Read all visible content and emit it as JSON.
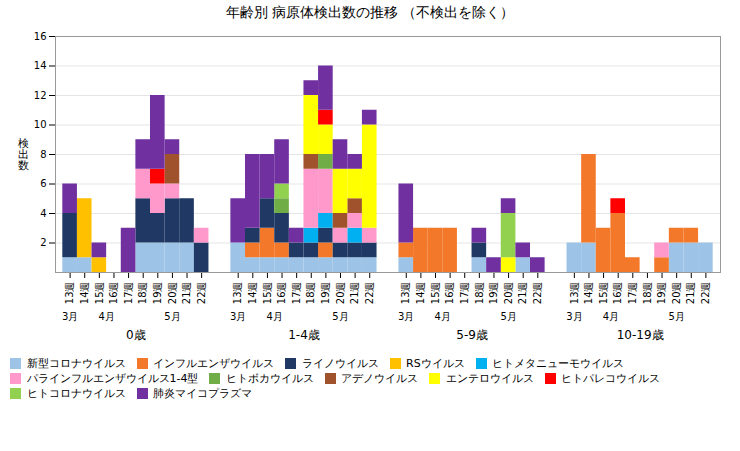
{
  "chart_data": {
    "type": "bar",
    "stacked": true,
    "title": "年齢別 病原体検出数の推移  （不検出を除く）",
    "ylabel": "検\n出\n数",
    "categories": [
      "13週",
      "14週",
      "15週",
      "16週",
      "17週",
      "18週",
      "19週",
      "20週",
      "21週",
      "22週",
      "13週",
      "14週",
      "15週",
      "16週",
      "17週",
      "18週",
      "19週",
      "20週",
      "21週",
      "22週",
      "13週",
      "14週",
      "15週",
      "16週",
      "17週",
      "18週",
      "19週",
      "20週",
      "21週",
      "22週",
      "13週",
      "14週",
      "15週",
      "16週",
      "17週",
      "18週",
      "19週",
      "20週",
      "21週",
      "22週"
    ],
    "category_months": [
      "3月",
      "4月",
      "4月",
      "4月",
      "4月",
      "5月",
      "5月",
      "5月",
      "5月",
      "5月",
      "3月",
      "4月",
      "4月",
      "4月",
      "4月",
      "5月",
      "5月",
      "5月",
      "5月",
      "5月",
      "3月",
      "4月",
      "4月",
      "4月",
      "4月",
      "5月",
      "5月",
      "5月",
      "5月",
      "5月",
      "3月",
      "4月",
      "4月",
      "4月",
      "4月",
      "5月",
      "5月",
      "5月",
      "5月",
      "5月"
    ],
    "category_groups": [
      "0歳",
      "0歳",
      "0歳",
      "0歳",
      "0歳",
      "0歳",
      "0歳",
      "0歳",
      "0歳",
      "0歳",
      "1-4歳",
      "1-4歳",
      "1-4歳",
      "1-4歳",
      "1-4歳",
      "1-4歳",
      "1-4歳",
      "1-4歳",
      "1-4歳",
      "1-4歳",
      "5-9歳",
      "5-9歳",
      "5-9歳",
      "5-9歳",
      "5-9歳",
      "5-9歳",
      "5-9歳",
      "5-9歳",
      "5-9歳",
      "5-9歳",
      "10-19歳",
      "10-19歳",
      "10-19歳",
      "10-19歳",
      "10-19歳",
      "10-19歳",
      "10-19歳",
      "10-19歳",
      "10-19歳",
      "10-19歳"
    ],
    "series": [
      {
        "name": "新型コロナウイルス",
        "color": "#9DC3E6",
        "values": [
          1,
          1,
          0,
          0,
          0,
          2,
          2,
          2,
          2,
          0,
          2,
          1,
          1,
          1,
          1,
          1,
          1,
          1,
          1,
          1,
          1,
          0,
          0,
          0,
          0,
          1,
          0,
          0,
          1,
          0,
          2,
          2,
          0,
          0,
          0,
          0,
          0,
          2,
          2,
          2
        ]
      },
      {
        "name": "インフルエンザウイルス",
        "color": "#F4782A",
        "values": [
          0,
          0,
          0,
          0,
          0,
          0,
          0,
          0,
          0,
          0,
          0,
          1,
          2,
          1,
          0,
          0,
          1,
          0,
          0,
          0,
          1,
          3,
          3,
          3,
          0,
          0,
          0,
          0,
          0,
          0,
          0,
          6,
          3,
          4,
          1,
          0,
          1,
          1,
          1,
          0
        ]
      },
      {
        "name": "ライノウイルス",
        "color": "#1F3864",
        "values": [
          3,
          0,
          0,
          0,
          0,
          3,
          2,
          3,
          3,
          2,
          0,
          1,
          2,
          2,
          1,
          1,
          1,
          1,
          1,
          1,
          0,
          0,
          0,
          0,
          0,
          1,
          0,
          0,
          0,
          0,
          0,
          0,
          0,
          0,
          0,
          0,
          0,
          0,
          0,
          0
        ]
      },
      {
        "name": "RSウイルス",
        "color": "#FFC000",
        "values": [
          0,
          4,
          1,
          0,
          0,
          0,
          0,
          0,
          0,
          0,
          0,
          0,
          0,
          0,
          0,
          0,
          0,
          0,
          0,
          0,
          0,
          0,
          0,
          0,
          0,
          0,
          0,
          0,
          0,
          0,
          0,
          0,
          0,
          0,
          0,
          0,
          0,
          0,
          0,
          0
        ]
      },
      {
        "name": "ヒトメタニューモウイルス",
        "color": "#00B0F0",
        "values": [
          0,
          0,
          0,
          0,
          0,
          0,
          0,
          0,
          0,
          0,
          0,
          0,
          0,
          0,
          0,
          1,
          1,
          0,
          1,
          0,
          0,
          0,
          0,
          0,
          0,
          0,
          0,
          0,
          0,
          0,
          0,
          0,
          0,
          0,
          0,
          0,
          0,
          0,
          0,
          0
        ]
      },
      {
        "name": "パラインフルエンザウイルス1-4型",
        "color": "#FF99CC",
        "values": [
          0,
          0,
          0,
          0,
          0,
          2,
          2,
          1,
          0,
          1,
          0,
          0,
          0,
          0,
          0,
          4,
          3,
          1,
          1,
          1,
          0,
          0,
          0,
          0,
          0,
          0,
          0,
          0,
          0,
          0,
          0,
          0,
          0,
          0,
          0,
          0,
          1,
          0,
          0,
          0
        ]
      },
      {
        "name": "ヒトボカウイルス",
        "color": "#70AD47",
        "values": [
          0,
          0,
          0,
          0,
          0,
          0,
          0,
          0,
          0,
          0,
          0,
          0,
          0,
          1,
          0,
          0,
          1,
          0,
          0,
          0,
          0,
          0,
          0,
          0,
          0,
          0,
          0,
          0,
          0,
          0,
          0,
          0,
          0,
          0,
          0,
          0,
          0,
          0,
          0,
          0
        ]
      },
      {
        "name": "アデノウイルス",
        "color": "#A0522D",
        "values": [
          0,
          0,
          0,
          0,
          0,
          0,
          0,
          2,
          0,
          0,
          0,
          0,
          0,
          0,
          0,
          1,
          0,
          1,
          1,
          0,
          0,
          0,
          0,
          0,
          0,
          0,
          0,
          0,
          0,
          0,
          0,
          0,
          0,
          0,
          0,
          0,
          0,
          0,
          0,
          0
        ]
      },
      {
        "name": "エンテロウイルス",
        "color": "#FFFF00",
        "values": [
          0,
          0,
          0,
          0,
          0,
          0,
          0,
          0,
          0,
          0,
          0,
          0,
          0,
          0,
          0,
          4,
          2,
          3,
          2,
          7,
          0,
          0,
          0,
          0,
          0,
          0,
          0,
          1,
          0,
          0,
          0,
          0,
          0,
          0,
          0,
          0,
          0,
          0,
          0,
          0
        ]
      },
      {
        "name": "ヒトパレコウイルス",
        "color": "#FF0000",
        "values": [
          0,
          0,
          0,
          0,
          0,
          0,
          1,
          0,
          0,
          0,
          0,
          0,
          0,
          0,
          0,
          0,
          1,
          0,
          0,
          0,
          0,
          0,
          0,
          0,
          0,
          0,
          0,
          0,
          0,
          0,
          0,
          0,
          0,
          1,
          0,
          0,
          0,
          0,
          0,
          0
        ]
      },
      {
        "name": "ヒトコロナウイルス",
        "color": "#92D050",
        "values": [
          0,
          0,
          0,
          0,
          0,
          0,
          0,
          0,
          0,
          0,
          0,
          0,
          0,
          1,
          0,
          0,
          0,
          0,
          0,
          0,
          0,
          0,
          0,
          0,
          0,
          0,
          0,
          3,
          0,
          0,
          0,
          0,
          0,
          0,
          0,
          0,
          0,
          0,
          0,
          0
        ]
      },
      {
        "name": "肺炎マイコプラズマ",
        "color": "#7030A0",
        "values": [
          2,
          0,
          1,
          0,
          3,
          2,
          5,
          1,
          0,
          0,
          3,
          5,
          3,
          3,
          1,
          1,
          3,
          2,
          1,
          1,
          4,
          0,
          0,
          0,
          0,
          1,
          1,
          1,
          1,
          1,
          0,
          0,
          0,
          0,
          0,
          0,
          0,
          0,
          0,
          0
        ]
      }
    ],
    "ylim": [
      0,
      16
    ],
    "yticks": [
      2,
      4,
      6,
      8,
      10,
      12,
      14,
      16
    ],
    "grid": true,
    "legend": "bottom"
  }
}
